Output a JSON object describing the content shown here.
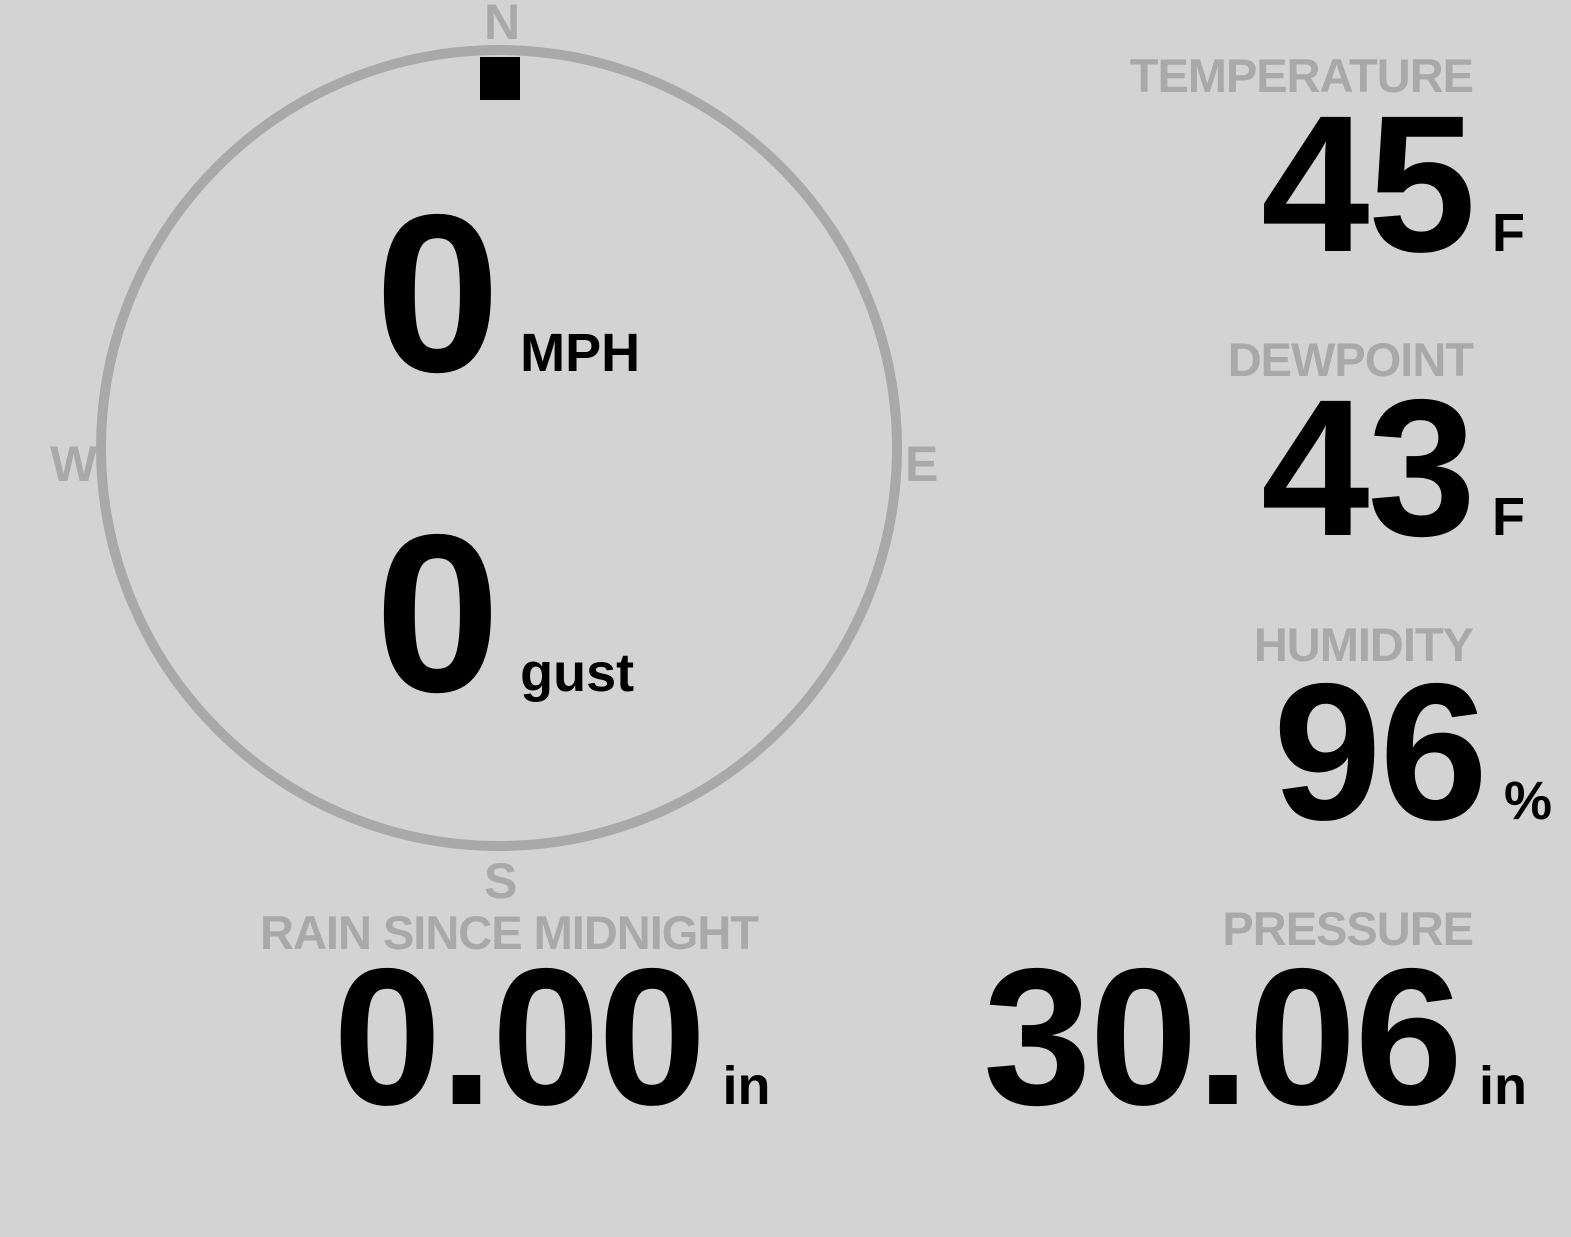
{
  "compass": {
    "north": "N",
    "east": "E",
    "south": "S",
    "west": "W",
    "direction_deg": 0,
    "ring_color": "#a9a9a9"
  },
  "wind": {
    "speed": "0",
    "speed_unit": "MPH",
    "gust": "0",
    "gust_unit": "gust"
  },
  "temperature": {
    "label": "TEMPERATURE",
    "value": "45",
    "unit": "F"
  },
  "dewpoint": {
    "label": "DEWPOINT",
    "value": "43",
    "unit": "F"
  },
  "humidity": {
    "label": "HUMIDITY",
    "value": "96",
    "unit": "%"
  },
  "rain": {
    "label": "RAIN SINCE MIDNIGHT",
    "value": "0.00",
    "unit": "in"
  },
  "pressure": {
    "label": "PRESSURE",
    "value": "30.06",
    "unit": "in"
  }
}
